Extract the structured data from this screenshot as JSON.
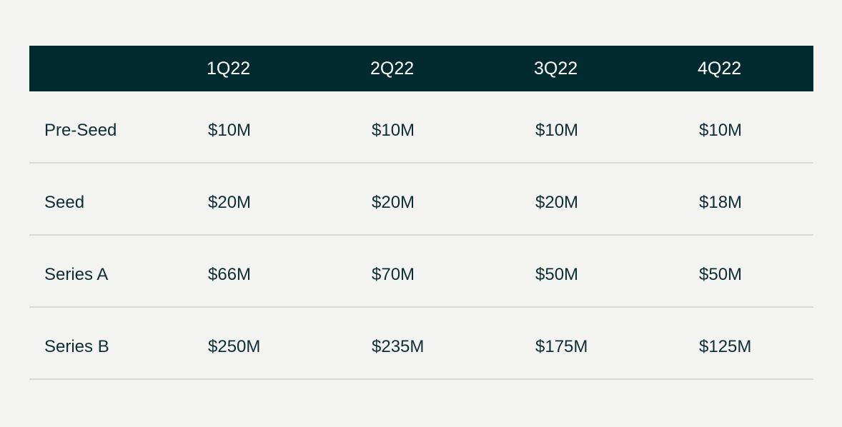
{
  "colors": {
    "background": "#f3f3f2",
    "header_background": "#022b30",
    "header_text": "#ffffff",
    "body_text": "#0f2e33",
    "row_divider": "#d9d9d7"
  },
  "chart_data": {
    "type": "table",
    "columns": [
      "",
      "1Q22",
      "2Q22",
      "3Q22",
      "4Q22"
    ],
    "rows": [
      {
        "label": "Pre-Seed",
        "values": [
          "$10M",
          "$10M",
          "$10M",
          "$10M"
        ]
      },
      {
        "label": "Seed",
        "values": [
          "$20M",
          "$20M",
          "$20M",
          "$18M"
        ]
      },
      {
        "label": "Series A",
        "values": [
          "$66M",
          "$70M",
          "$50M",
          "$50M"
        ]
      },
      {
        "label": "Series B",
        "values": [
          "$250M",
          "$235M",
          "$175M",
          "$125M"
        ]
      }
    ]
  }
}
